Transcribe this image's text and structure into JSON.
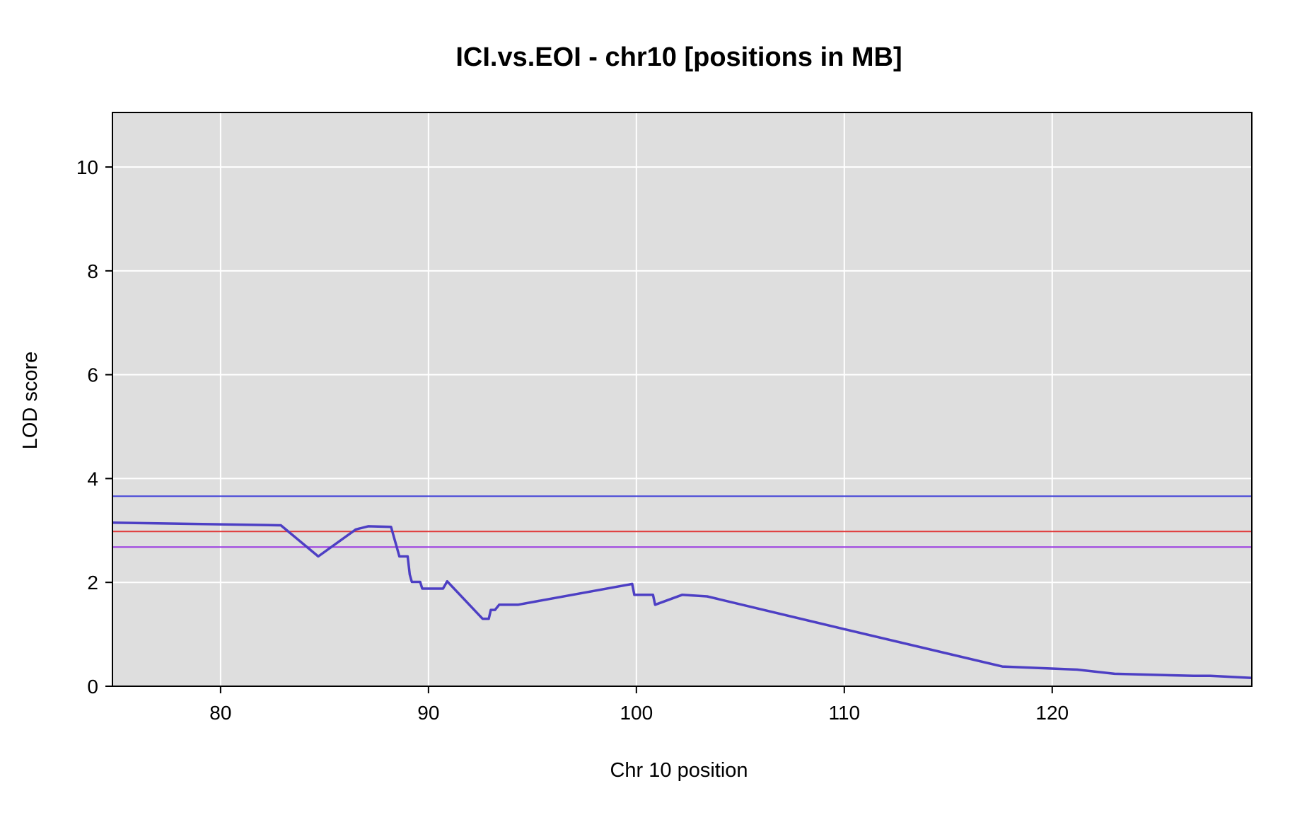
{
  "chart_data": {
    "type": "line",
    "title": "ICI.vs.EOI - chr10 [positions in MB]",
    "xlabel": "Chr 10 position",
    "ylabel": "LOD score",
    "xlim": [
      74.8,
      129.6
    ],
    "ylim": [
      0,
      11.05
    ],
    "xticks": [
      80,
      90,
      100,
      110,
      120
    ],
    "yticks": [
      0,
      2,
      4,
      6,
      8,
      10
    ],
    "grid": true,
    "background": "#dedede",
    "grid_color": "#ffffff",
    "series": [
      {
        "color": "#4d3fc4",
        "points": [
          [
            74.8,
            3.15
          ],
          [
            82.8,
            3.1
          ],
          [
            82.9,
            3.1
          ],
          [
            84.7,
            2.5
          ],
          [
            86.5,
            3.02
          ],
          [
            87.1,
            3.08
          ],
          [
            88.2,
            3.07
          ],
          [
            88.6,
            2.5
          ],
          [
            89.0,
            2.5
          ],
          [
            89.1,
            2.15
          ],
          [
            89.2,
            2.01
          ],
          [
            89.6,
            2.01
          ],
          [
            89.7,
            1.88
          ],
          [
            90.7,
            1.88
          ],
          [
            90.9,
            2.02
          ],
          [
            92.6,
            1.3
          ],
          [
            92.9,
            1.3
          ],
          [
            93.0,
            1.47
          ],
          [
            93.2,
            1.47
          ],
          [
            93.4,
            1.57
          ],
          [
            94.3,
            1.57
          ],
          [
            99.8,
            1.97
          ],
          [
            99.9,
            1.76
          ],
          [
            100.8,
            1.76
          ],
          [
            100.9,
            1.57
          ],
          [
            102.2,
            1.76
          ],
          [
            103.4,
            1.73
          ],
          [
            110.0,
            1.1
          ],
          [
            117.6,
            0.38
          ],
          [
            121.2,
            0.32
          ],
          [
            123.0,
            0.24
          ],
          [
            126.8,
            0.2
          ],
          [
            127.6,
            0.2
          ],
          [
            129.6,
            0.16
          ]
        ]
      }
    ],
    "thresholds": [
      {
        "value": 3.66,
        "color": "#3a3ad6"
      },
      {
        "value": 2.98,
        "color": "#e03a3a"
      },
      {
        "value": 2.68,
        "color": "#9a3ae0"
      }
    ]
  }
}
